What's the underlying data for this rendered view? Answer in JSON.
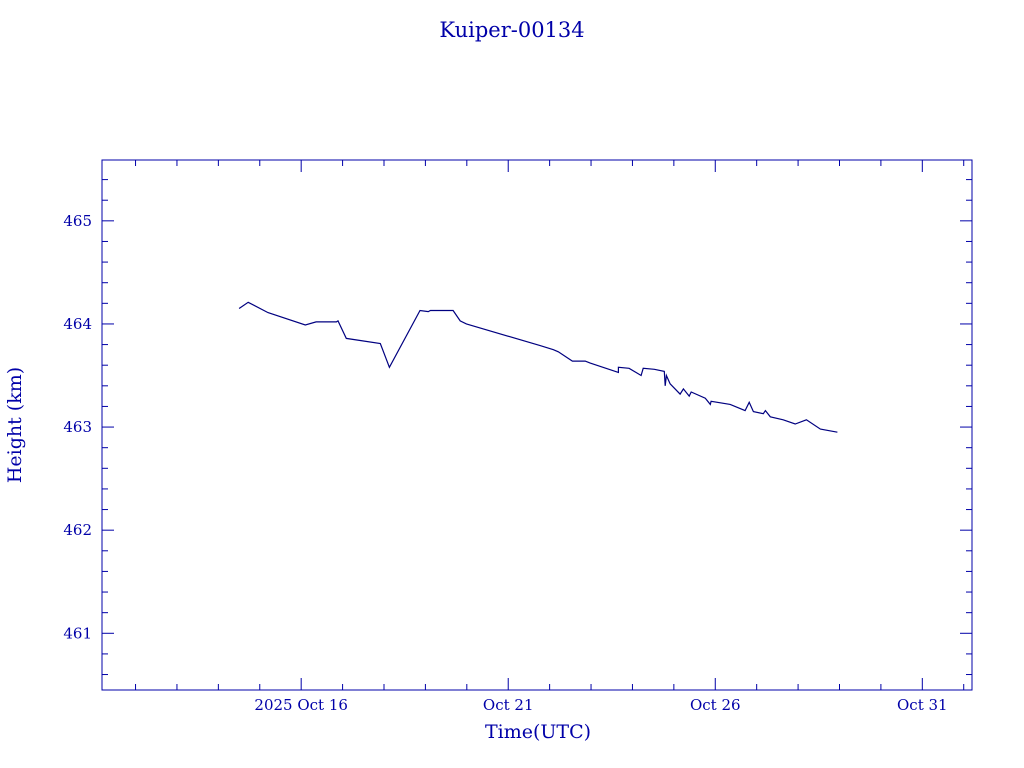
{
  "chart_data": {
    "type": "line",
    "title": "Kuiper-00134",
    "xlabel": "Time(UTC)",
    "ylabel": "Height (km)",
    "x_unit": "day of October 2025",
    "xlim": [
      11.19,
      32.2
    ],
    "ylim": [
      460.45,
      465.59
    ],
    "x_ticks": [
      {
        "value": 16,
        "label": "2025 Oct 16"
      },
      {
        "value": 21,
        "label": "Oct 21"
      },
      {
        "value": 26,
        "label": "Oct 26"
      },
      {
        "value": 31,
        "label": "Oct 31"
      }
    ],
    "x_minor_step": 1,
    "y_ticks": [
      {
        "value": 461,
        "label": "461"
      },
      {
        "value": 462,
        "label": "462"
      },
      {
        "value": 463,
        "label": "463"
      },
      {
        "value": 464,
        "label": "464"
      },
      {
        "value": 465,
        "label": "465"
      }
    ],
    "y_minor_step": 0.2,
    "grid": false,
    "color": "#000080",
    "axis_color": "#0000a8",
    "series": [
      {
        "name": "Height",
        "x": [
          14.5,
          14.72,
          15.2,
          16.1,
          16.36,
          16.85,
          16.89,
          17.09,
          17.91,
          18.13,
          18.87,
          19.07,
          19.12,
          19.67,
          19.84,
          19.99,
          21.77,
          22.09,
          22.21,
          22.55,
          22.86,
          22.98,
          23.66,
          23.66,
          23.92,
          24.21,
          24.26,
          24.53,
          24.77,
          24.79,
          24.82,
          24.91,
          25.15,
          25.23,
          25.37,
          25.42,
          25.76,
          25.88,
          25.9,
          26.36,
          26.72,
          26.82,
          26.92,
          27.16,
          27.21,
          27.33,
          27.64,
          27.93,
          28.2,
          28.54,
          28.95
        ],
        "y": [
          464.15,
          464.21,
          464.11,
          463.99,
          464.02,
          464.02,
          464.03,
          463.86,
          463.81,
          463.58,
          464.13,
          464.12,
          464.13,
          464.13,
          464.03,
          464.0,
          463.79,
          463.75,
          463.73,
          463.64,
          463.64,
          463.62,
          463.53,
          463.58,
          463.57,
          463.5,
          463.57,
          463.56,
          463.54,
          463.4,
          463.5,
          463.42,
          463.32,
          463.37,
          463.3,
          463.34,
          463.28,
          463.22,
          463.25,
          463.22,
          463.16,
          463.24,
          463.15,
          463.13,
          463.16,
          463.1,
          463.07,
          463.03,
          463.07,
          462.98,
          462.95
        ]
      }
    ]
  }
}
